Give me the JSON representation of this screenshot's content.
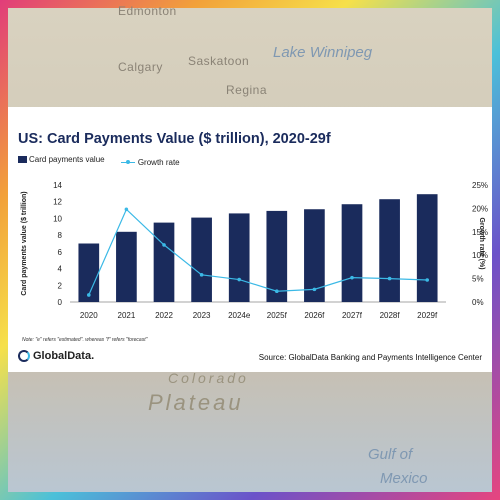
{
  "map": {
    "labels": [
      "Edmonton",
      "Saskatoon",
      "Calgary",
      "Regina",
      "Lake Winnipeg",
      "Colorado",
      "Plateau",
      "Gulf of",
      "Mexico"
    ]
  },
  "note": "Note: \"e\" refers \"estimated\", whereas \"f\" refers \"forecast\"",
  "footer": {
    "logo_text": "GlobalData.",
    "source": "Source: GlobalData Banking and Payments Intelligence Center"
  },
  "colors": {
    "bar": "#1a2b5c",
    "line": "#3bb9e6"
  },
  "chart_data": {
    "type": "bar",
    "title": "US: Card Payments Value ($ trillion), 2020-29f",
    "categories": [
      "2020",
      "2021",
      "2022",
      "2023",
      "2024e",
      "2025f",
      "2026f",
      "2027f",
      "2028f",
      "2029f"
    ],
    "series": [
      {
        "name": "Card payments value",
        "type": "bar",
        "axis": "left",
        "values": [
          7.0,
          8.4,
          9.5,
          10.1,
          10.6,
          10.9,
          11.1,
          11.7,
          12.3,
          12.9
        ]
      },
      {
        "name": "Growth rate",
        "type": "line",
        "axis": "right",
        "values": [
          1.5,
          19.8,
          12.2,
          5.8,
          4.8,
          2.3,
          2.7,
          5.2,
          5.0,
          4.7
        ]
      }
    ],
    "ylabel": "Card payments value ($ trillion)",
    "y2label": "Growth rate (%)",
    "ylim": [
      0,
      14
    ],
    "yticks": [
      "0",
      "2",
      "4",
      "6",
      "8",
      "10",
      "12",
      "14"
    ],
    "y2lim": [
      0,
      25
    ],
    "y2ticks": [
      "0%",
      "5%",
      "10%",
      "15%",
      "20%",
      "25%"
    ],
    "legend_position": "top-left",
    "grid": false
  }
}
